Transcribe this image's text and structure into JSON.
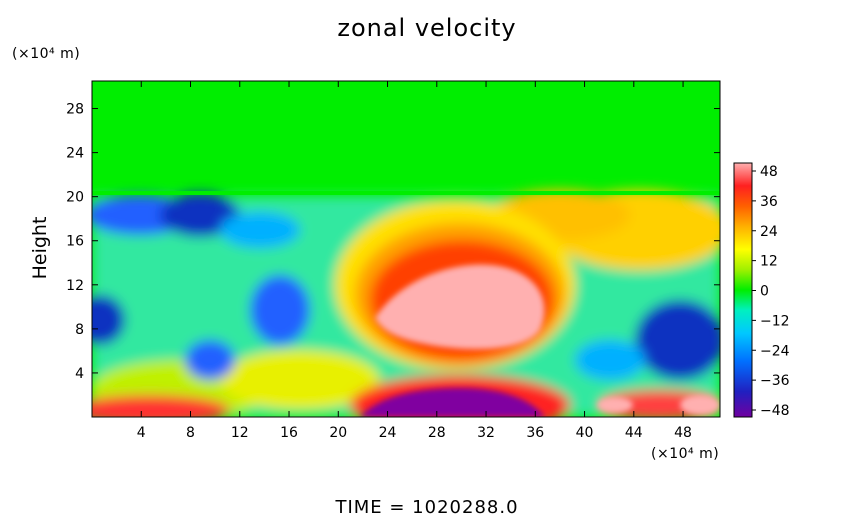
{
  "header": {
    "title": "zonal velocity",
    "y_unit": "(×10⁴ m)",
    "x_unit": "(×10⁴ m)",
    "ylabel": "Height"
  },
  "footer": {
    "time_label": "TIME = 1020288.0"
  },
  "chart_data": {
    "type": "heatmap",
    "title": "zonal velocity",
    "xlabel": "",
    "ylabel": "Height",
    "x_unit": "(×10⁴ m)",
    "y_unit": "(×10⁴ m)",
    "xlim": [
      0,
      51
    ],
    "ylim": [
      0,
      30.5
    ],
    "x_ticks": [
      "4",
      "8",
      "12",
      "16",
      "20",
      "24",
      "28",
      "32",
      "36",
      "40",
      "44",
      "48"
    ],
    "y_ticks": [
      "4",
      "8",
      "12",
      "16",
      "20",
      "24",
      "28"
    ],
    "colorbar": {
      "min": -48,
      "max": 48,
      "ticks": [
        "48",
        "36",
        "24",
        "12",
        "0",
        "−12",
        "−24",
        "−36",
        "−48"
      ]
    },
    "features": [
      {
        "label": "jet maximum",
        "x": 30,
        "y": 9.5,
        "value": 48
      },
      {
        "label": "surface minimum",
        "x": 30,
        "y": 1,
        "value": -48
      }
    ],
    "background_value_above_20": 0
  },
  "colors": {
    "background": "#ffffff",
    "zero": "#00ee00",
    "max": "#ffb0b0",
    "min": "#8000a0"
  }
}
